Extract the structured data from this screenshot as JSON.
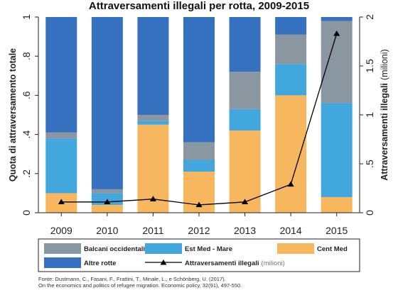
{
  "chart_data": {
    "type": "bar",
    "title": "Attraversamenti illegali per rotta, 2009-2015",
    "ylabel": "Quota di attraversamento totale",
    "y2label": "Attraversamenti illegali",
    "y2label_unit": "(milioni)",
    "ylim": [
      0,
      1
    ],
    "y2lim": [
      0,
      2
    ],
    "yticks": [
      "0",
      ".2",
      ".4",
      ".6",
      ".8",
      "1"
    ],
    "y2ticks": [
      "0",
      ".5",
      "1",
      "1.5",
      "2"
    ],
    "categories": [
      "2009",
      "2010",
      "2011",
      "2012",
      "2013",
      "2014",
      "2015"
    ],
    "stacked": true,
    "series": [
      {
        "name": "Cent Med",
        "color": "#f6b75e",
        "values": [
          0.1,
          0.04,
          0.45,
          0.21,
          0.42,
          0.6,
          0.08
        ]
      },
      {
        "name": "Est Med - Mare",
        "color": "#42a7dc",
        "values": [
          0.28,
          0.06,
          0.02,
          0.06,
          0.11,
          0.16,
          0.48
        ]
      },
      {
        "name": "Balcani occidentali",
        "color": "#8a96a0",
        "values": [
          0.03,
          0.02,
          0.03,
          0.09,
          0.19,
          0.15,
          0.42
        ]
      },
      {
        "name": "Altre rotte",
        "color": "#3671bf",
        "values": [
          0.59,
          0.88,
          0.5,
          0.64,
          0.28,
          0.09,
          0.02
        ]
      }
    ],
    "line_series": {
      "name": "Attraversamenti illegali",
      "unit": "(milioni)",
      "axis": "right",
      "marker": "triangle",
      "values": [
        0.11,
        0.11,
        0.14,
        0.08,
        0.11,
        0.29,
        1.83
      ]
    },
    "legend_placement": "bottom",
    "grid": false
  },
  "legend": {
    "items": [
      {
        "label": "Balcani occidentali",
        "swatch": "#8a96a0"
      },
      {
        "label": "Est Med - Mare",
        "swatch": "#42a7dc"
      },
      {
        "label": "Cent Med",
        "swatch": "#f6b75e"
      },
      {
        "label": "Altre rotte",
        "swatch": "#3671bf"
      },
      {
        "label": "Attraversamenti illegali",
        "suffix": "(milioni)",
        "swatch": "line-triangle"
      }
    ]
  },
  "source": {
    "line1": "Fonte: Dustmann, C., Fasani, F., Frattini, T., Minale, L., e Schönberg, U. (2017).",
    "line2": "On the economics and politics of refugee migration. Economic policy, 32(91), 497-550."
  }
}
